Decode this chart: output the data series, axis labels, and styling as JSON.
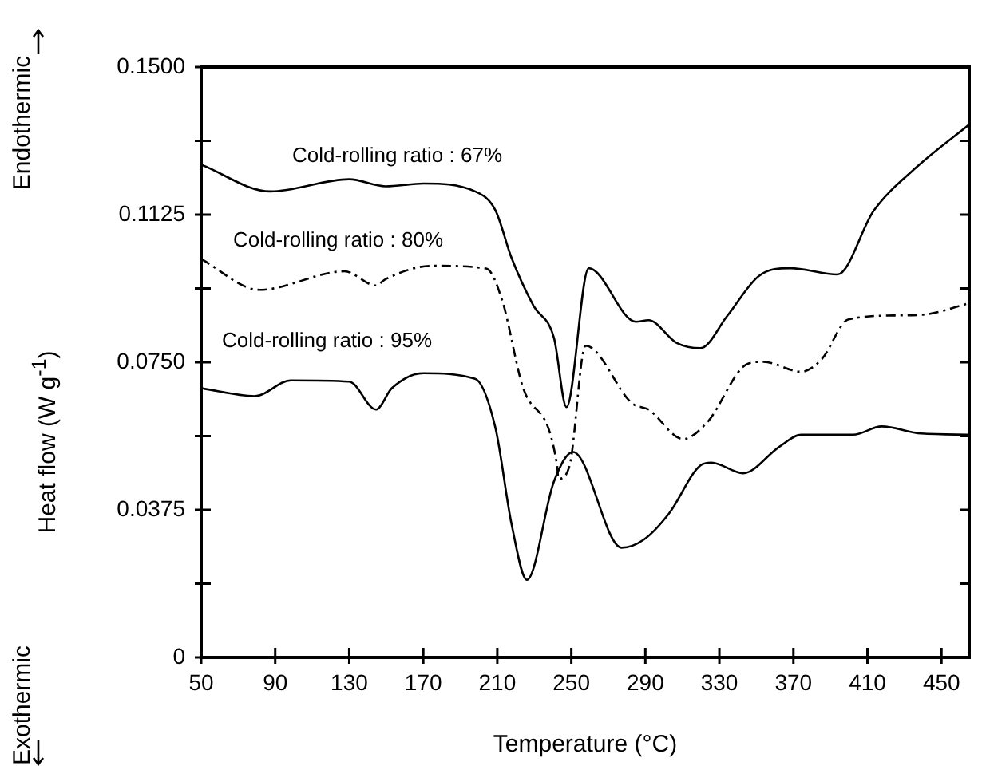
{
  "chart_data": {
    "type": "line",
    "xlabel": "Temperature (°C)",
    "ylabel": "Heat flow (W g$^{-1}$)",
    "xlim": [
      50,
      465
    ],
    "xticks": [
      50,
      90,
      130,
      170,
      210,
      250,
      290,
      330,
      370,
      410,
      450
    ],
    "ylim": [
      0,
      0.15
    ],
    "yticks": [
      {
        "value": 0,
        "label": "0"
      },
      {
        "value": 0.01875,
        "label": null
      },
      {
        "value": 0.0375,
        "label": "0.0375"
      },
      {
        "value": 0.05625,
        "label": null
      },
      {
        "value": 0.075,
        "label": "0.0750"
      },
      {
        "value": 0.09375,
        "label": null
      },
      {
        "value": 0.1125,
        "label": "0.1125"
      },
      {
        "value": 0.13125,
        "label": null
      },
      {
        "value": 0.15,
        "label": "0.1500"
      }
    ],
    "grid": false,
    "legend": false,
    "marker": "none",
    "series": [
      {
        "color": "#000000",
        "line_style": "solid",
        "x": [
          50,
          87.4,
          130,
          149.6,
          170,
          198,
          209,
          217.7,
          229.6,
          240.6,
          247.4,
          259.4,
          284.9,
          291.7,
          307,
          319.8,
          334.3,
          351.3,
          368.3,
          393.8,
          413.4,
          436.4,
          465
        ],
        "values": [
          0.1252,
          0.1184,
          0.1215,
          0.1197,
          0.1204,
          0.1184,
          0.1136,
          0.1015,
          0.0893,
          0.0812,
          0.0636,
          0.0989,
          0.0853,
          0.0857,
          0.0799,
          0.0786,
          0.0868,
          0.0969,
          0.0989,
          0.0973,
          0.1135,
          0.1245,
          0.1354
        ]
      },
      {
        "color": "#000000",
        "line_style": "dashed",
        "x": [
          50,
          81.5,
          127.4,
          144.5,
          149.6,
          175,
          204,
          212.6,
          223.6,
          242.3,
          243,
          249,
          257.7,
          283,
          291.7,
          310.4,
          323.2,
          345.3,
          353.8,
          374.3,
          385.3,
          399.8,
          427.9,
          442.3,
          465
        ],
        "values": [
          0.1012,
          0.0934,
          0.0981,
          0.0945,
          0.0961,
          0.0995,
          0.0988,
          0.0908,
          0.069,
          0.0488,
          0.0454,
          0.0486,
          0.0792,
          0.0645,
          0.063,
          0.0555,
          0.0596,
          0.0746,
          0.0751,
          0.0726,
          0.0758,
          0.0859,
          0.0869,
          0.0872,
          0.09
        ]
      },
      {
        "color": "#000000",
        "line_style": "solid",
        "x": [
          50,
          78.9,
          98.5,
          130,
          144.5,
          153,
          170,
          198,
          209,
          217.7,
          226,
          240.6,
          250.9,
          277.2,
          289,
          302.8,
          319.8,
          325.7,
          342.8,
          362.3,
          374.3,
          402.3,
          417.7,
          439,
          465
        ],
        "values": [
          0.0684,
          0.0664,
          0.0704,
          0.0701,
          0.063,
          0.0684,
          0.0722,
          0.0708,
          0.0583,
          0.0339,
          0.0197,
          0.0447,
          0.0522,
          0.0279,
          0.0299,
          0.0366,
          0.0488,
          0.0495,
          0.0468,
          0.0535,
          0.0566,
          0.0566,
          0.0587,
          0.0569,
          0.0566
        ]
      }
    ],
    "annotations": [
      "Cold-rolling ratio : 67%",
      "Cold-rolling ratio : 80%",
      "Cold-rolling ratio : 95%",
      "Endothermic",
      "Exothermic"
    ]
  }
}
